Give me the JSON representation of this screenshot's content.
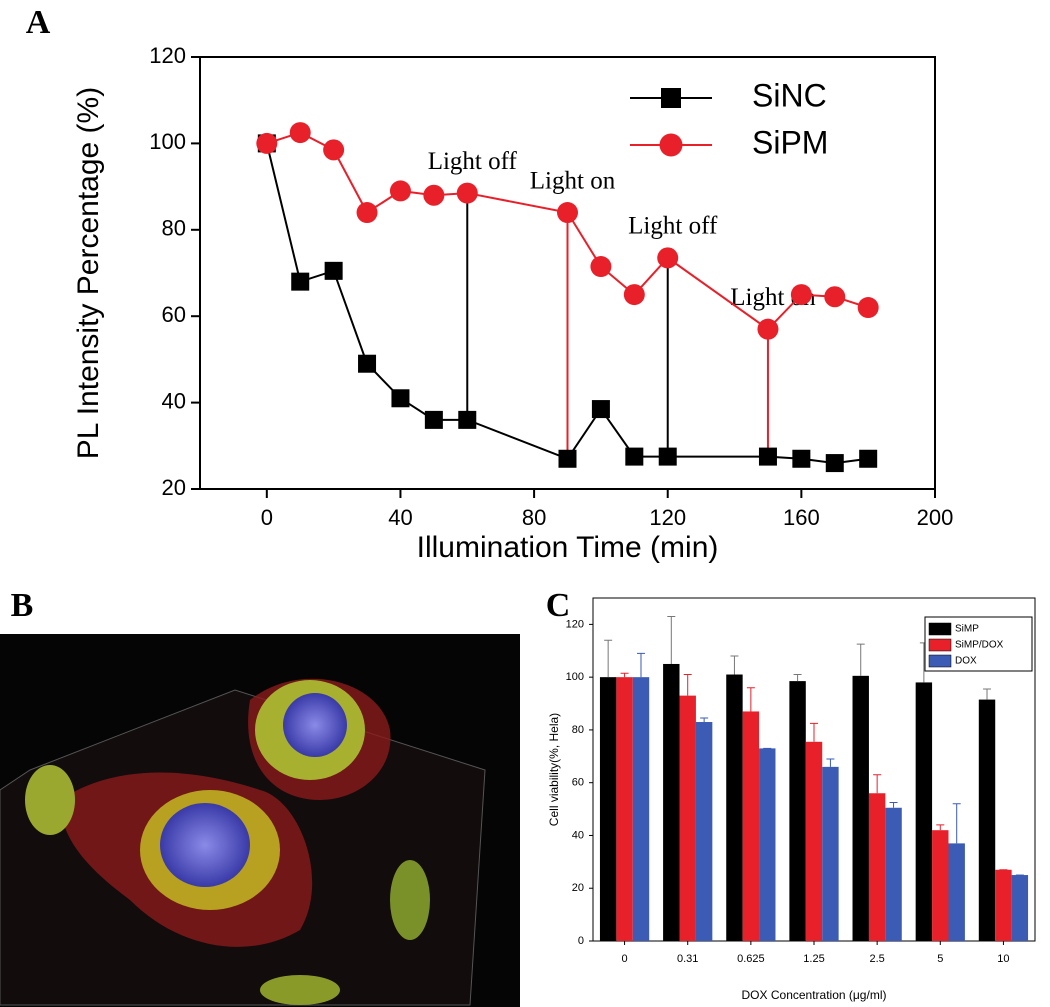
{
  "panel_labels": [
    "A",
    "B",
    "C"
  ],
  "chart_data": [
    {
      "type": "line",
      "xlabel": "Illumination Time (min)",
      "ylabel": "PL Intensity Percentage (%)",
      "xlim": [
        -20,
        200
      ],
      "xticks": [
        0,
        40,
        80,
        120,
        160,
        200
      ],
      "ylim": [
        20,
        120
      ],
      "yticks": [
        20,
        40,
        60,
        80,
        100,
        120
      ],
      "legend": "top-right",
      "series": [
        {
          "name": "SiNC",
          "color": "#000000",
          "marker": "square",
          "x": [
            0,
            10,
            20,
            30,
            40,
            50,
            60,
            90,
            100,
            110,
            120,
            150,
            160,
            170,
            180
          ],
          "values": [
            100,
            68,
            70.5,
            49,
            41,
            36,
            36,
            27,
            38.5,
            27.5,
            27.5,
            27.5,
            27,
            26,
            27
          ]
        },
        {
          "name": "SiPM",
          "color": "#e8202a",
          "marker": "circle",
          "x": [
            0,
            10,
            20,
            30,
            40,
            50,
            60,
            90,
            100,
            110,
            120,
            150,
            160,
            170,
            180
          ],
          "values": [
            100,
            102.5,
            98.5,
            84,
            89,
            88,
            88.5,
            84,
            71.5,
            65,
            73.5,
            57,
            65,
            64.5,
            62
          ]
        }
      ],
      "annotations": [
        {
          "text": "Light off",
          "x": 60,
          "color": "#000000"
        },
        {
          "text": "Light on",
          "x": 90,
          "color": "#e8202a"
        },
        {
          "text": "Light off",
          "x": 120,
          "color": "#000000"
        },
        {
          "text": "Light on",
          "x": 150,
          "color": "#e8202a"
        }
      ]
    },
    {
      "type": "bar",
      "xlabel": "DOX Concentration (μg/ml)",
      "ylabel": "Cell viability(%, Hela)",
      "categories": [
        "0",
        "0.31",
        "0.625",
        "1.25",
        "2.5",
        "5",
        "10"
      ],
      "ylim": [
        0,
        130
      ],
      "yticks": [
        0,
        20,
        40,
        60,
        80,
        100,
        120
      ],
      "legend": "top-right",
      "series": [
        {
          "name": "SiMP",
          "color": "#000000",
          "values": [
            100,
            105,
            101,
            98.5,
            100.5,
            98,
            91.5
          ],
          "errors": [
            14,
            18,
            7,
            2.5,
            12,
            15,
            4
          ]
        },
        {
          "name": "SiMP/DOX",
          "color": "#e8202a",
          "values": [
            100,
            93,
            87,
            75.5,
            56,
            42,
            27
          ],
          "errors": [
            1.5,
            8,
            9,
            7,
            7,
            2,
            0
          ]
        },
        {
          "name": "DOX",
          "color": "#3b5bb5",
          "values": [
            100,
            83,
            73,
            66,
            50.5,
            37,
            25
          ],
          "errors": [
            9,
            1.5,
            0,
            3,
            2,
            15,
            0
          ]
        }
      ]
    }
  ]
}
